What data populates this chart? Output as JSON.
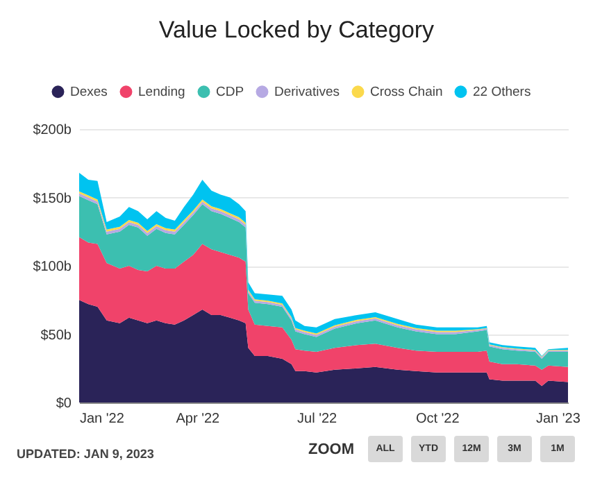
{
  "chart_data": {
    "type": "area",
    "stacked": true,
    "title": "Value Locked by Category",
    "x": [
      "2022-01-01",
      "2022-01-08",
      "2022-01-15",
      "2022-01-22",
      "2022-02-01",
      "2022-02-08",
      "2022-02-15",
      "2022-02-22",
      "2022-03-01",
      "2022-03-08",
      "2022-03-15",
      "2022-03-22",
      "2022-03-29",
      "2022-04-05",
      "2022-04-12",
      "2022-04-19",
      "2022-04-26",
      "2022-05-03",
      "2022-05-08",
      "2022-05-10",
      "2022-05-15",
      "2022-05-25",
      "2022-06-05",
      "2022-06-12",
      "2022-06-15",
      "2022-06-22",
      "2022-07-01",
      "2022-07-15",
      "2022-08-01",
      "2022-08-15",
      "2022-09-01",
      "2022-09-15",
      "2022-10-01",
      "2022-10-15",
      "2022-11-01",
      "2022-11-08",
      "2022-11-10",
      "2022-11-20",
      "2022-12-01",
      "2022-12-15",
      "2022-12-20",
      "2022-12-25",
      "2023-01-09"
    ],
    "series": [
      {
        "name": "Dexes",
        "color": "#2a2358",
        "values": [
          75,
          72,
          70,
          60,
          58,
          62,
          60,
          58,
          60,
          58,
          57,
          60,
          64,
          68,
          64,
          64,
          62,
          60,
          58,
          40,
          34,
          34,
          32,
          28,
          23,
          23,
          22,
          24,
          25,
          26,
          24,
          23,
          22,
          22,
          22,
          22,
          17,
          16,
          16,
          16,
          12,
          16,
          15
        ]
      },
      {
        "name": "Lending",
        "color": "#f0436a",
        "values": [
          46,
          45,
          46,
          42,
          40,
          38,
          37,
          38,
          40,
          40,
          41,
          43,
          44,
          48,
          48,
          46,
          46,
          46,
          45,
          28,
          23,
          22,
          23,
          18,
          16,
          15,
          15,
          16,
          17,
          17,
          16,
          15,
          15,
          15,
          15,
          16,
          13,
          12,
          12,
          11,
          12,
          11,
          11
        ]
      },
      {
        "name": "CDP",
        "color": "#3cbfb0",
        "values": [
          30,
          31,
          29,
          21,
          27,
          30,
          31,
          26,
          27,
          26,
          25,
          27,
          29,
          29,
          28,
          28,
          27,
          26,
          25,
          12,
          16,
          16,
          15,
          14,
          13,
          12,
          11,
          14,
          16,
          17,
          15,
          14,
          13,
          13,
          15,
          15,
          11,
          11,
          10,
          10,
          8,
          10,
          11
        ]
      },
      {
        "name": "Derivatives",
        "color": "#b6a9e3",
        "values": [
          2,
          2,
          2,
          2,
          2,
          2,
          2,
          2,
          2,
          2,
          2,
          2,
          2,
          2,
          2,
          2,
          2,
          2,
          2,
          1.5,
          1.5,
          1.5,
          1.5,
          1.5,
          1.5,
          1.5,
          1.5,
          1.5,
          1.5,
          1.5,
          1.5,
          1.5,
          1.5,
          1.5,
          1,
          1,
          1,
          1,
          1,
          1,
          1,
          1,
          1
        ]
      },
      {
        "name": "Cross Chain",
        "color": "#fbd94c",
        "values": [
          1.5,
          1.5,
          1.5,
          1.5,
          1.5,
          1.5,
          1.5,
          1.5,
          1.5,
          1.5,
          1.5,
          1.5,
          1.5,
          1.5,
          1.5,
          1.5,
          1.5,
          1.5,
          1.5,
          1,
          1,
          1,
          1,
          1,
          1,
          1,
          1,
          1,
          1,
          1,
          1,
          1,
          1,
          1,
          0.5,
          0.5,
          0.5,
          0.5,
          0.5,
          0.5,
          0.5,
          0.5,
          0.5
        ]
      },
      {
        "name": "22 Others",
        "color": "#00c3f0",
        "values": [
          13.5,
          11.5,
          13.5,
          5.5,
          7.5,
          9.5,
          8.5,
          8.5,
          9.5,
          7.5,
          6.5,
          9.5,
          11.5,
          14.5,
          11.5,
          10.5,
          11.5,
          9.5,
          8.5,
          5.5,
          4.5,
          4.5,
          5.5,
          5.5,
          5.5,
          3.5,
          4.5,
          4.5,
          3.5,
          3.5,
          3.5,
          2.5,
          2.5,
          2.5,
          1.5,
          1.5,
          1.5,
          1.5,
          1.5,
          1.5,
          0.5,
          0.5,
          1.5
        ]
      }
    ],
    "xlim": [
      "2022-01-01",
      "2023-01-09"
    ],
    "xticks": [
      {
        "value": "2022-01-01",
        "label": "Jan '22"
      },
      {
        "value": "2022-04-01",
        "label": "Apr '22"
      },
      {
        "value": "2022-07-01",
        "label": "Jul '22"
      },
      {
        "value": "2022-10-01",
        "label": "Oct '22"
      },
      {
        "value": "2023-01-01",
        "label": "Jan '23"
      }
    ],
    "ylim": [
      0,
      200
    ],
    "yticks": [
      {
        "value": 0,
        "label": "$0"
      },
      {
        "value": 50,
        "label": "$50b"
      },
      {
        "value": 100,
        "label": "$100b"
      },
      {
        "value": 150,
        "label": "$150b"
      },
      {
        "value": 200,
        "label": "$200b"
      }
    ],
    "grid": "y",
    "legend": "top",
    "annotations": [
      "UPDATED: JAN 9, 2023",
      "ZOOM",
      "ALL",
      "YTD",
      "12M",
      "3M",
      "1M"
    ]
  }
}
